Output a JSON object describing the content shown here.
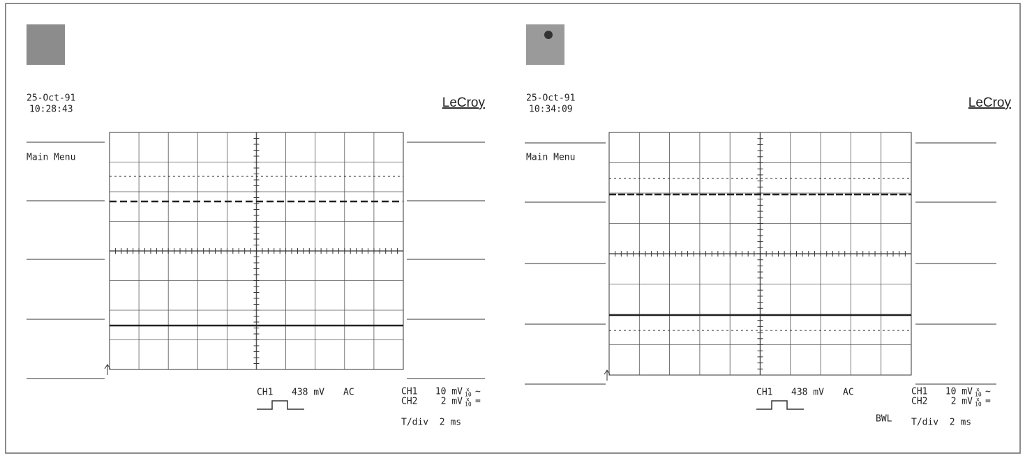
{
  "panels": [
    {
      "date": "25-Oct-91",
      "time": "10:28:43",
      "brand": "LeCroy",
      "menu": "Main Menu",
      "trigger": {
        "channel": "CH1",
        "level": "438 mV",
        "coupling": "AC"
      },
      "channels": [
        {
          "name": "CH1",
          "scale": "10 mV",
          "probe_top": "x",
          "probe_bottom": "10",
          "coupling": "~"
        },
        {
          "name": "CH2",
          "scale": "2 mV",
          "probe_top": "x",
          "probe_bottom": "10",
          "coupling": "="
        }
      ],
      "timebase": "T/div  2 ms"
    },
    {
      "date": "25-Oct-91",
      "time": "10:34:09",
      "brand": "LeCroy",
      "menu": "Main Menu",
      "trigger": {
        "channel": "CH1",
        "level": "438 mV",
        "coupling": "AC"
      },
      "channels": [
        {
          "name": "CH1",
          "scale": "10 mV",
          "probe_top": "x",
          "probe_bottom": "10",
          "coupling": "~"
        },
        {
          "name": "CH2",
          "scale": "2 mV",
          "probe_top": "x",
          "probe_bottom": "10",
          "coupling": "="
        }
      ],
      "bwl": "BWL",
      "timebase": "T/div  2 ms"
    }
  ]
}
